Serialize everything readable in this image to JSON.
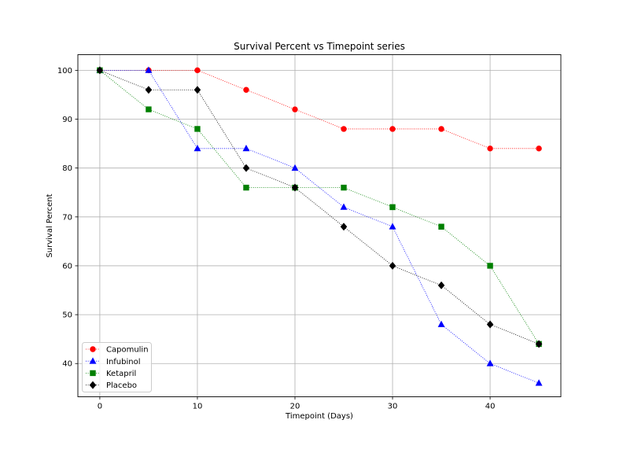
{
  "chart_data": {
    "type": "line",
    "title": "Survival Percent vs Timepoint series",
    "xlabel": "Timepoint (Days)",
    "ylabel": "Survival Percent",
    "xlim": [
      -2.25,
      47.25
    ],
    "ylim": [
      33.2,
      103.2
    ],
    "xticks": [
      0,
      10,
      20,
      30,
      40
    ],
    "yticks": [
      40,
      50,
      60,
      70,
      80,
      90,
      100
    ],
    "grid": true,
    "legend_position": "lower-left",
    "x": [
      0,
      5,
      10,
      15,
      20,
      25,
      30,
      35,
      40,
      45
    ],
    "series": [
      {
        "name": "Capomulin",
        "color": "#ff0000",
        "marker": "circle",
        "values": [
          100,
          100,
          100,
          96,
          92,
          88,
          88,
          88,
          84,
          84
        ]
      },
      {
        "name": "Infubinol",
        "color": "#0000ff",
        "marker": "triangle",
        "values": [
          100,
          100,
          84,
          84,
          80,
          72,
          68,
          48,
          40,
          36
        ]
      },
      {
        "name": "Ketapril",
        "color": "#008000",
        "marker": "square",
        "values": [
          100,
          92,
          88,
          76,
          76,
          76,
          72,
          68,
          60,
          44
        ]
      },
      {
        "name": "Placebo",
        "color": "#000000",
        "marker": "diamond",
        "values": [
          100,
          96,
          96,
          80,
          76,
          68,
          60,
          56,
          48,
          44
        ]
      }
    ]
  }
}
